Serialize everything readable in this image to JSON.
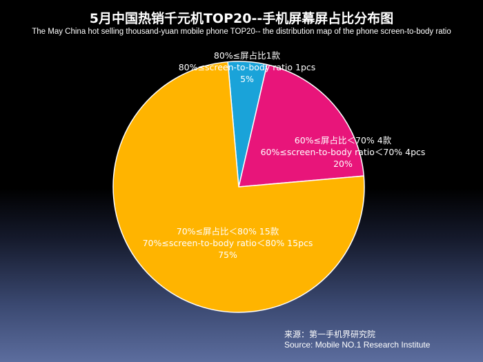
{
  "title": "5月中国热销千元机TOP20--手机屏幕屏占比分布图",
  "subtitle": "The  May China hot selling thousand-yuan mobile phone TOP20-- the distribution map of the phone screen-to-body ratio",
  "source": {
    "cn": "来源：第一手机界研究院",
    "en": "Source: Mobile NO.1 Research Institute"
  },
  "chart_data": {
    "type": "pie",
    "unit": "pcs",
    "slices": [
      {
        "label_cn": "80%≤屏占比1款",
        "label_en": "80%≤screen-to-body ratio 1pcs",
        "percent_label": "5%",
        "value": 1,
        "color": "#1aa3d9"
      },
      {
        "label_cn": "60%≤屏占比＜70% 4款",
        "label_en": "60%≤screen-to-body ratio＜70% 4pcs",
        "percent_label": "20%",
        "value": 4,
        "color": "#e8157a"
      },
      {
        "label_cn": "70%≤屏占比＜80% 15款",
        "label_en": "70%≤screen-to-body ratio＜80% 15pcs",
        "percent_label": "75%",
        "value": 15,
        "color": "#ffb400"
      }
    ]
  }
}
